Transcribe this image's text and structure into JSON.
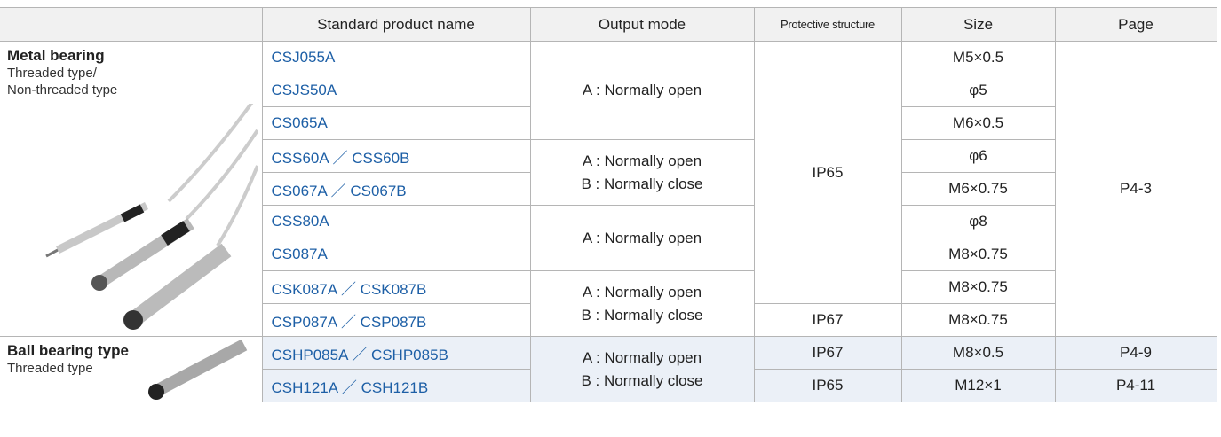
{
  "header": [
    "Standard product name",
    "Output mode",
    "Protective structure",
    "Size",
    "Page"
  ],
  "groups": [
    {
      "title": "Metal bearing",
      "lines": [
        "Threaded type/",
        "Non-threaded type"
      ]
    },
    {
      "title": "Ball bearing type",
      "lines": [
        "Threaded type"
      ]
    }
  ],
  "products": [
    "CSJ055A",
    "CSJS50A",
    "CS065A",
    "CSS60A ／ CSS60B",
    "CS067A ／ CS067B",
    "CSS80A",
    "CS087A",
    "CSK087A ／ CSK087B",
    "CSP087A ／ CSP087B",
    "CSHP085A ／ CSHP085B",
    "CSH121A ／ CSH121B"
  ],
  "output_modes": [
    {
      "lines": [
        "A : Normally open"
      ]
    },
    {
      "lines": [
        "A : Normally open",
        "B : Normally close"
      ]
    },
    {
      "lines": [
        "A : Normally open"
      ]
    },
    {
      "lines": [
        "A : Normally open",
        "B : Normally close"
      ]
    },
    {
      "lines": [
        "A : Normally open",
        "B : Normally close"
      ]
    }
  ],
  "protective": [
    "IP65",
    "IP67",
    "IP67",
    "IP65"
  ],
  "sizes": [
    "M5×0.5",
    "φ5",
    "M6×0.5",
    "φ6",
    "M6×0.75",
    "φ8",
    "M8×0.75",
    "M8×0.75",
    "M8×0.75",
    "M8×0.5",
    "M12×1"
  ],
  "pages": [
    "P4-3",
    "P4-9",
    "P4-11"
  ]
}
